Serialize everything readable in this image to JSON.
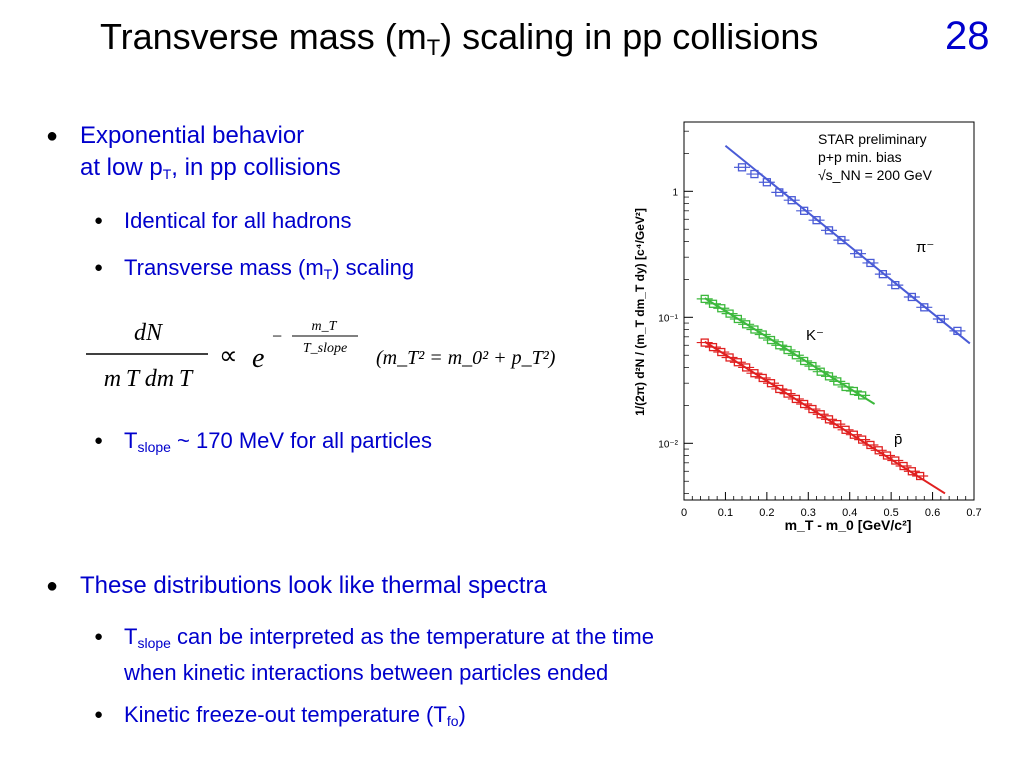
{
  "slide": {
    "title_pre": "Transverse mass (m",
    "title_sub": "T",
    "title_post": ") scaling in pp collisions",
    "number": "28"
  },
  "bullets": {
    "b1_line1": "Exponential behavior",
    "b1_line2_pre": "at low p",
    "b1_line2_sub": "T",
    "b1_line2_post": ", in pp collisions",
    "s1": "Identical for all hadrons",
    "s2_pre": "Transverse mass (m",
    "s2_sub": "T",
    "s2_post": ") scaling",
    "s3_pre": "T",
    "s3_sub": "slope",
    "s3_post": " ~ 170 MeV for all particles",
    "b2": "These distributions look like thermal spectra",
    "s4_pre": "T",
    "s4_sub": "slope",
    "s4_post": " can be interpreted as the temperature at the time",
    "s4_line2": "when kinetic interactions between particles ended",
    "s5_pre": "Kinetic freeze-out temperature (T",
    "s5_sub": "fo",
    "s5_post": ")"
  },
  "formula": {
    "numerator": "dN",
    "denominator": "m T dm T",
    "proportional": "∝",
    "base": "e",
    "exponent_num": "m_T",
    "exponent_den": "T_slope",
    "relation": "(m_T² = m_0² + p_T²)"
  },
  "chart_data": {
    "type": "scatter",
    "annotation_lines": [
      "STAR preliminary",
      "p+p min. bias",
      "√s_NN = 200 GeV"
    ],
    "xlabel": "m_T - m_0 [GeV/c²]",
    "ylabel": "1/(2π) d²N / (m_T dm_T dy) [c⁴/GeV²]",
    "xlim": [
      0,
      0.7
    ],
    "ylim_log10": [
      -2.45,
      0.55
    ],
    "y_scale": "log",
    "x_ticks": [
      "0",
      "0.1",
      "0.2",
      "0.3",
      "0.4",
      "0.5",
      "0.6",
      "0.7"
    ],
    "y_ticks": [
      {
        "value": 1,
        "label": "1"
      },
      {
        "value": 0.1,
        "label": "10⁻¹"
      },
      {
        "value": 0.01,
        "label": "10⁻²"
      }
    ],
    "series": [
      {
        "name": "π⁻",
        "color": "#4a5bd6",
        "x": [
          0.14,
          0.17,
          0.2,
          0.23,
          0.26,
          0.29,
          0.32,
          0.35,
          0.38,
          0.42,
          0.45,
          0.48,
          0.51,
          0.55,
          0.58,
          0.62,
          0.66
        ],
        "y": [
          1.55,
          1.37,
          1.18,
          0.98,
          0.85,
          0.7,
          0.59,
          0.49,
          0.41,
          0.32,
          0.27,
          0.22,
          0.18,
          0.145,
          0.12,
          0.097,
          0.078
        ],
        "fit_x": [
          0.1,
          0.69
        ],
        "fit_y": [
          2.3,
          0.062
        ]
      },
      {
        "name": "K⁻",
        "color": "#3cb83c",
        "x": [
          0.05,
          0.07,
          0.09,
          0.11,
          0.13,
          0.15,
          0.17,
          0.19,
          0.21,
          0.23,
          0.25,
          0.27,
          0.29,
          0.31,
          0.33,
          0.35,
          0.37,
          0.39,
          0.41,
          0.43
        ],
        "y": [
          0.14,
          0.128,
          0.118,
          0.107,
          0.097,
          0.088,
          0.08,
          0.073,
          0.066,
          0.06,
          0.055,
          0.05,
          0.045,
          0.041,
          0.037,
          0.034,
          0.031,
          0.028,
          0.026,
          0.024
        ],
        "fit_x": [
          0.05,
          0.46
        ],
        "fit_y": [
          0.142,
          0.0205
        ]
      },
      {
        "name": "p̄",
        "color": "#e02020",
        "x": [
          0.05,
          0.07,
          0.09,
          0.11,
          0.13,
          0.15,
          0.17,
          0.19,
          0.21,
          0.23,
          0.25,
          0.27,
          0.29,
          0.31,
          0.33,
          0.35,
          0.37,
          0.39,
          0.41,
          0.43,
          0.45,
          0.47,
          0.49,
          0.51,
          0.53,
          0.55,
          0.57
        ],
        "y": [
          0.063,
          0.058,
          0.053,
          0.048,
          0.044,
          0.04,
          0.036,
          0.033,
          0.03,
          0.027,
          0.0248,
          0.0225,
          0.0205,
          0.0187,
          0.017,
          0.0155,
          0.0142,
          0.0128,
          0.0117,
          0.0107,
          0.0097,
          0.0088,
          0.008,
          0.0073,
          0.0066,
          0.006,
          0.0055
        ],
        "fit_x": [
          0.05,
          0.63
        ],
        "fit_y": [
          0.064,
          0.004
        ]
      }
    ]
  }
}
